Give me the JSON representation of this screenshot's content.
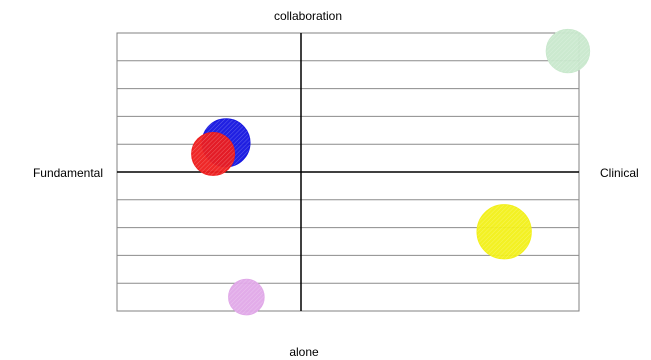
{
  "chart_data": {
    "type": "scatter",
    "subtype": "bubble quadrant",
    "axis_labels": {
      "top": "collaboration",
      "bottom": "alone",
      "left": "Fundamental",
      "right": "Clinical"
    },
    "xlim": [
      -1,
      1
    ],
    "ylim": [
      -1,
      1
    ],
    "grid": "horizontal",
    "legend": "none",
    "points": [
      {
        "x": -0.41,
        "y": 0.21,
        "size": 1.0,
        "color": "#1414e0"
      },
      {
        "x": -0.48,
        "y": 0.13,
        "size": 0.8,
        "color": "#ee1c1c"
      },
      {
        "x": 0.96,
        "y": 0.87,
        "size": 0.82,
        "color": "#c8e8cc"
      },
      {
        "x": 0.73,
        "y": -0.43,
        "size": 1.28,
        "color": "#f2f018"
      },
      {
        "x": -0.3,
        "y": -0.9,
        "size": 0.55,
        "color": "#e0a8e8"
      }
    ]
  }
}
